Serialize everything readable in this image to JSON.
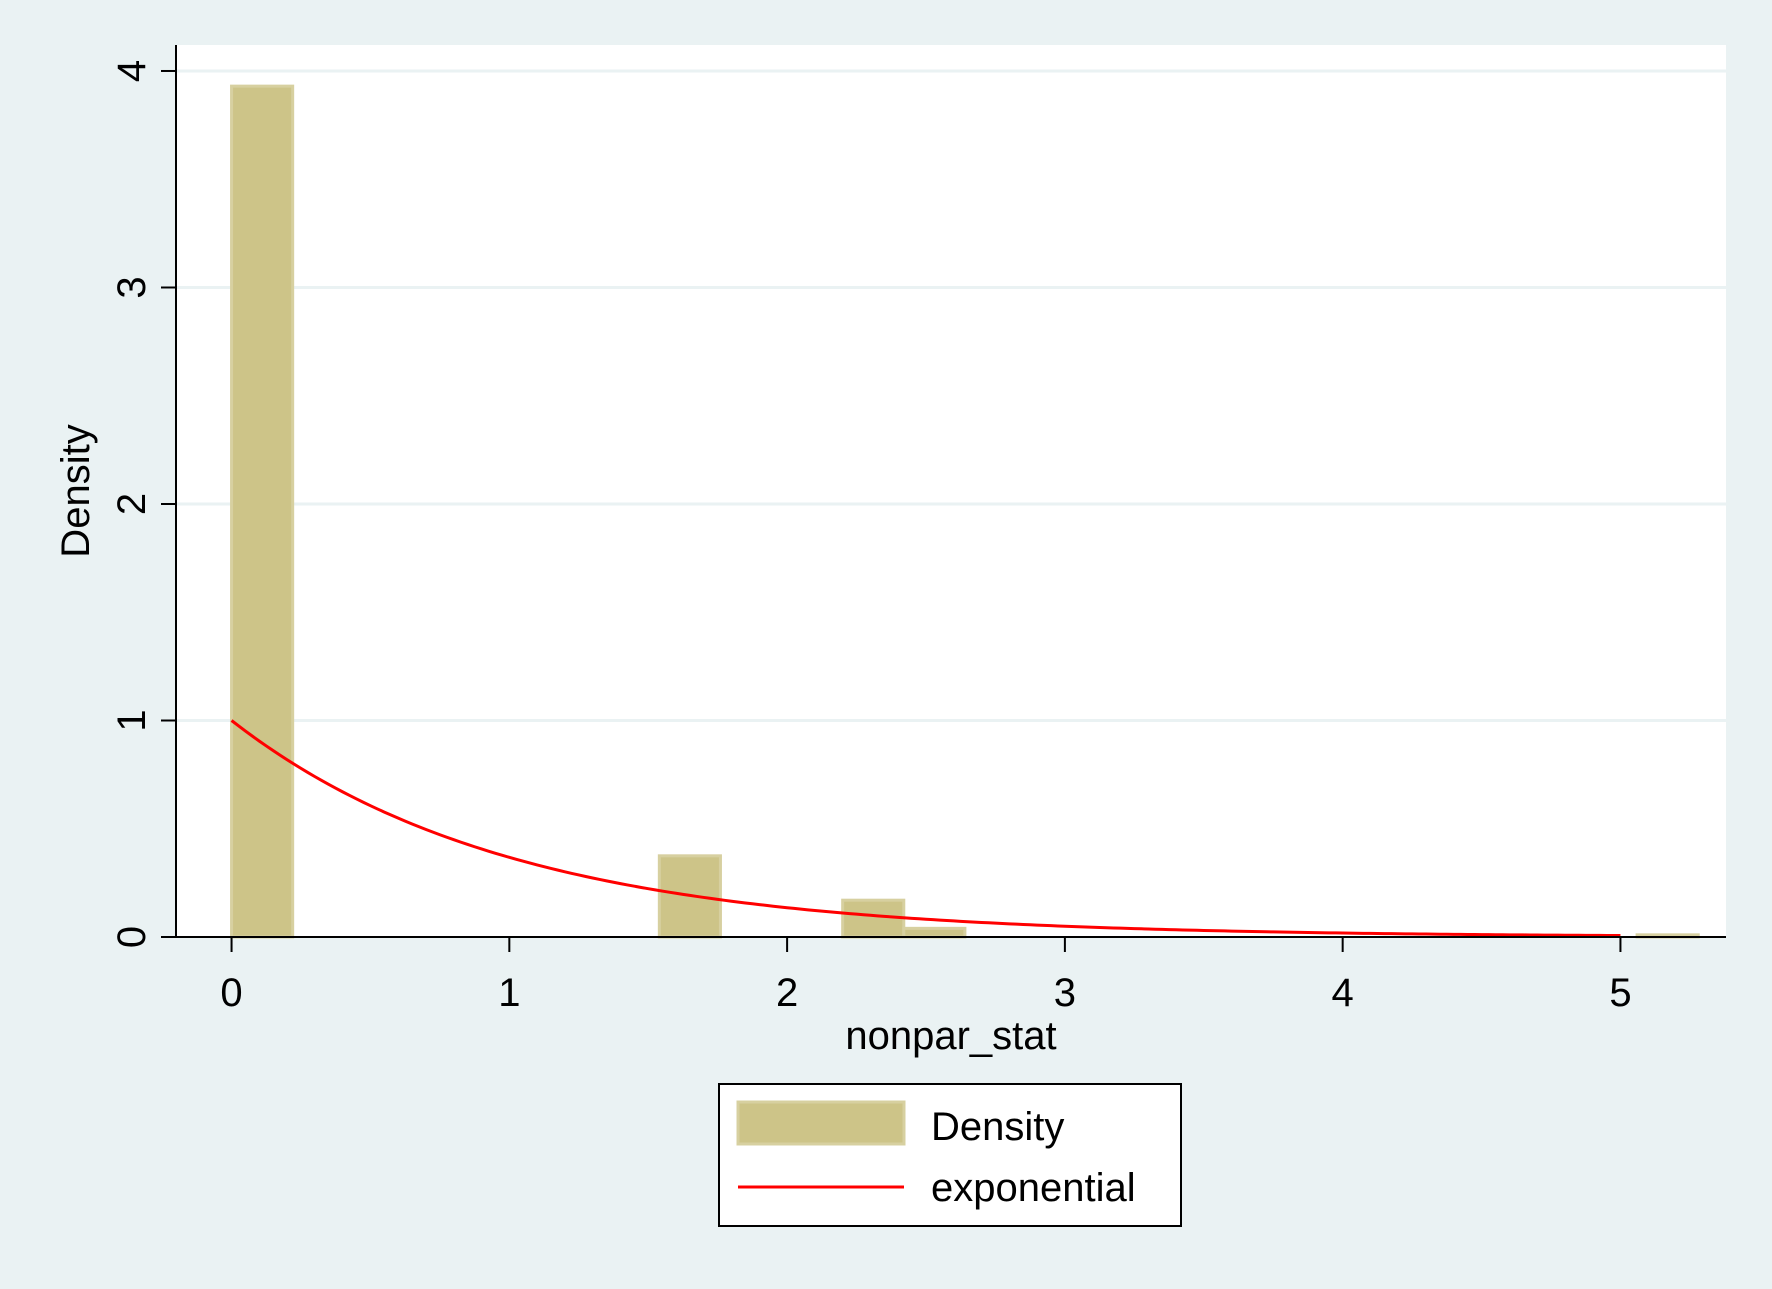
{
  "chart_data": {
    "type": "bar",
    "xlabel": "nonpar_stat",
    "ylabel": "Density",
    "xlim": [
      -0.2,
      5.38
    ],
    "ylim": [
      0,
      4.12
    ],
    "x_ticks": [
      "0",
      "1",
      "2",
      "3",
      "4",
      "5"
    ],
    "y_ticks": [
      "0",
      "1",
      "2",
      "3",
      "4"
    ],
    "grid": true,
    "legend_position": "bottom-center",
    "series": [
      {
        "name": "Density",
        "kind": "histogram",
        "color": "#cdc488",
        "bins": [
          {
            "x0": 0.0,
            "x1": 0.22,
            "value": 3.93
          },
          {
            "x0": 1.54,
            "x1": 1.76,
            "value": 0.375
          },
          {
            "x0": 2.2,
            "x1": 2.42,
            "value": 0.17
          },
          {
            "x0": 2.42,
            "x1": 2.64,
            "value": 0.04
          },
          {
            "x0": 5.06,
            "x1": 5.28,
            "value": 0.01
          }
        ]
      },
      {
        "name": "exponential",
        "kind": "line",
        "color": "#ff0000",
        "function": "exp(-x)",
        "x_range": [
          0,
          5
        ]
      }
    ]
  }
}
